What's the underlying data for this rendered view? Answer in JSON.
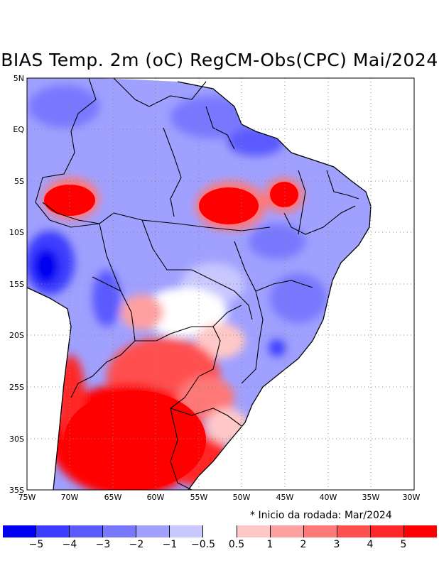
{
  "title": "BIAS Temp. 2m (oC) RegCM-Obs(CPC) Mai/2024",
  "footnote": "* Inicio da rodada: Mar/2024",
  "axes": {
    "lon_ticks": [
      "75W",
      "70W",
      "65W",
      "60W",
      "55W",
      "50W",
      "45W",
      "40W",
      "35W",
      "30W"
    ],
    "lat_ticks": [
      "5N",
      "EQ",
      "5S",
      "10S",
      "15S",
      "20S",
      "25S",
      "30S",
      "35S"
    ],
    "lon_range": [
      -75,
      -30
    ],
    "lat_range": [
      -35,
      5
    ],
    "grid": "dotted"
  },
  "colorbar": {
    "colors": [
      "#0000f0",
      "#3c3cff",
      "#5a5aff",
      "#7878ff",
      "#a0a0ff",
      "#c8c8ff",
      "#ffffff",
      "#ffc8c8",
      "#ffa0a0",
      "#ff7878",
      "#ff5050",
      "#ff2828",
      "#ff0000"
    ],
    "labels": [
      "−5",
      "−4",
      "−3",
      "−2",
      "−1",
      "−0.5",
      "0.5",
      "1",
      "2",
      "3",
      "4",
      "5"
    ]
  }
}
